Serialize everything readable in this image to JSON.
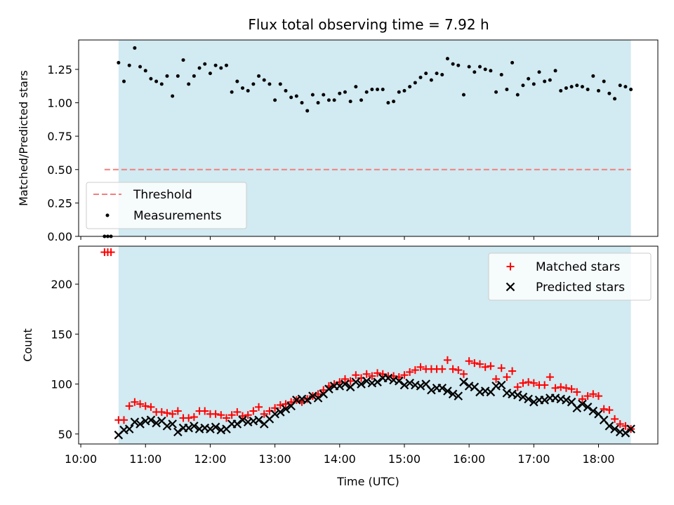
{
  "chart_data": [
    {
      "type": "scatter",
      "title": "Flux total observing time = 7.92 h",
      "xlabel": "",
      "ylabel": "Matched/Predicted stars",
      "ylim": [
        0.0,
        1.47
      ],
      "yticks": [
        "0.00",
        "0.25",
        "0.50",
        "0.75",
        "1.00",
        "1.25"
      ],
      "grid": false,
      "observing_window": [
        "10:35",
        "18:30"
      ],
      "threshold": 0.5,
      "threshold_span": [
        "10:22",
        "18:30"
      ],
      "legend": {
        "placement": "bottom-left",
        "entries": [
          {
            "label": "Threshold",
            "marker": "dashed-line",
            "color": "#f08080"
          },
          {
            "label": "Measurements",
            "marker": "dot",
            "color": "#000000"
          }
        ]
      },
      "series": [
        {
          "name": "Measurements",
          "color": "#000000",
          "x": [
            "10:22",
            "10:25",
            "10:28",
            "10:35",
            "10:40",
            "10:45",
            "10:50",
            "10:55",
            "11:00",
            "11:05",
            "11:10",
            "11:15",
            "11:20",
            "11:25",
            "11:30",
            "11:35",
            "11:40",
            "11:45",
            "11:50",
            "11:55",
            "12:00",
            "12:05",
            "12:10",
            "12:15",
            "12:20",
            "12:25",
            "12:30",
            "12:35",
            "12:40",
            "12:45",
            "12:50",
            "12:55",
            "13:00",
            "13:05",
            "13:10",
            "13:15",
            "13:20",
            "13:25",
            "13:30",
            "13:35",
            "13:40",
            "13:45",
            "13:50",
            "13:55",
            "14:00",
            "14:05",
            "14:10",
            "14:15",
            "14:20",
            "14:25",
            "14:30",
            "14:35",
            "14:40",
            "14:45",
            "14:50",
            "14:55",
            "15:00",
            "15:05",
            "15:10",
            "15:15",
            "15:20",
            "15:25",
            "15:30",
            "15:35",
            "15:40",
            "15:45",
            "15:50",
            "15:55",
            "16:00",
            "16:05",
            "16:10",
            "16:15",
            "16:20",
            "16:25",
            "16:30",
            "16:35",
            "16:40",
            "16:45",
            "16:50",
            "16:55",
            "17:00",
            "17:05",
            "17:10",
            "17:15",
            "17:20",
            "17:25",
            "17:30",
            "17:35",
            "17:40",
            "17:45",
            "17:50",
            "17:55",
            "18:00",
            "18:05",
            "18:10",
            "18:15",
            "18:20",
            "18:25",
            "18:30"
          ],
          "y": [
            0.0,
            0.0,
            0.0,
            1.3,
            1.16,
            1.28,
            1.41,
            1.27,
            1.24,
            1.18,
            1.16,
            1.14,
            1.2,
            1.05,
            1.2,
            1.32,
            1.14,
            1.2,
            1.26,
            1.29,
            1.22,
            1.28,
            1.26,
            1.28,
            1.08,
            1.16,
            1.11,
            1.09,
            1.14,
            1.2,
            1.17,
            1.14,
            1.02,
            1.14,
            1.09,
            1.04,
            1.05,
            1.0,
            0.94,
            1.06,
            1.0,
            1.06,
            1.02,
            1.02,
            1.07,
            1.08,
            1.01,
            1.12,
            1.02,
            1.08,
            1.1,
            1.1,
            1.1,
            1.0,
            1.01,
            1.08,
            1.09,
            1.12,
            1.15,
            1.19,
            1.22,
            1.17,
            1.22,
            1.21,
            1.33,
            1.29,
            1.28,
            1.06,
            1.27,
            1.23,
            1.27,
            1.25,
            1.24,
            1.08,
            1.21,
            1.1,
            1.3,
            1.06,
            1.13,
            1.18,
            1.14,
            1.23,
            1.16,
            1.17,
            1.24,
            1.09,
            1.11,
            1.12,
            1.13,
            1.12,
            1.1,
            1.2,
            1.09,
            1.16,
            1.07,
            1.03,
            1.13,
            1.12,
            1.1
          ]
        }
      ]
    },
    {
      "type": "scatter",
      "title": "",
      "xlabel": "Time (UTC)",
      "ylabel": "Count",
      "ylim": [
        40,
        238
      ],
      "yticks": [
        "50",
        "100",
        "150",
        "200"
      ],
      "xlim": [
        "09:58",
        "18:55"
      ],
      "xticks": [
        "10:00",
        "11:00",
        "12:00",
        "13:00",
        "14:00",
        "15:00",
        "16:00",
        "17:00",
        "18:00"
      ],
      "grid": false,
      "observing_window": [
        "10:35",
        "18:30"
      ],
      "legend": {
        "placement": "top-right",
        "entries": [
          {
            "label": "Matched stars",
            "marker": "plus",
            "color": "#ff0000"
          },
          {
            "label": "Predicted stars",
            "marker": "x",
            "color": "#000000"
          }
        ]
      },
      "series": [
        {
          "name": "Matched stars",
          "color": "#ff0000",
          "x": [
            "10:22",
            "10:25",
            "10:28",
            "10:35",
            "10:40",
            "10:45",
            "10:50",
            "10:55",
            "11:00",
            "11:05",
            "11:10",
            "11:15",
            "11:20",
            "11:25",
            "11:30",
            "11:35",
            "11:40",
            "11:45",
            "11:50",
            "11:55",
            "12:00",
            "12:05",
            "12:10",
            "12:15",
            "12:20",
            "12:25",
            "12:30",
            "12:35",
            "12:40",
            "12:45",
            "12:50",
            "12:55",
            "13:00",
            "13:05",
            "13:10",
            "13:15",
            "13:20",
            "13:25",
            "13:30",
            "13:35",
            "13:40",
            "13:45",
            "13:50",
            "13:55",
            "14:00",
            "14:05",
            "14:10",
            "14:15",
            "14:20",
            "14:25",
            "14:30",
            "14:35",
            "14:40",
            "14:45",
            "14:50",
            "14:55",
            "15:00",
            "15:05",
            "15:10",
            "15:15",
            "15:20",
            "15:25",
            "15:30",
            "15:35",
            "15:40",
            "15:45",
            "15:50",
            "15:55",
            "16:00",
            "16:05",
            "16:10",
            "16:15",
            "16:20",
            "16:25",
            "16:30",
            "16:35",
            "16:40",
            "16:45",
            "16:50",
            "16:55",
            "17:00",
            "17:05",
            "17:10",
            "17:15",
            "17:20",
            "17:25",
            "17:30",
            "17:35",
            "17:40",
            "17:45",
            "17:50",
            "17:55",
            "18:00",
            "18:05",
            "18:10",
            "18:15",
            "18:20",
            "18:25",
            "18:30"
          ],
          "y": [
            232,
            232,
            232,
            64,
            64,
            78,
            82,
            80,
            78,
            77,
            72,
            72,
            71,
            70,
            73,
            66,
            66,
            67,
            73,
            73,
            70,
            70,
            69,
            66,
            69,
            72,
            68,
            69,
            73,
            77,
            70,
            73,
            76,
            79,
            80,
            82,
            84,
            82,
            85,
            88,
            90,
            94,
            98,
            100,
            102,
            105,
            103,
            109,
            106,
            110,
            108,
            111,
            110,
            108,
            108,
            107,
            109,
            112,
            114,
            117,
            115,
            115,
            115,
            115,
            124,
            115,
            114,
            110,
            123,
            121,
            120,
            117,
            118,
            105,
            116,
            107,
            113,
            97,
            101,
            102,
            101,
            99,
            99,
            107,
            96,
            97,
            96,
            95,
            92,
            85,
            88,
            90,
            88,
            75,
            74,
            65,
            60,
            58,
            55
          ]
        },
        {
          "name": "Predicted stars",
          "color": "#000000",
          "x": [
            "10:35",
            "10:40",
            "10:45",
            "10:50",
            "10:55",
            "11:00",
            "11:05",
            "11:10",
            "11:15",
            "11:20",
            "11:25",
            "11:30",
            "11:35",
            "11:40",
            "11:45",
            "11:50",
            "11:55",
            "12:00",
            "12:05",
            "12:10",
            "12:15",
            "12:20",
            "12:25",
            "12:30",
            "12:35",
            "12:40",
            "12:45",
            "12:50",
            "12:55",
            "13:00",
            "13:05",
            "13:10",
            "13:15",
            "13:20",
            "13:25",
            "13:30",
            "13:35",
            "13:40",
            "13:45",
            "13:50",
            "13:55",
            "14:00",
            "14:05",
            "14:10",
            "14:15",
            "14:20",
            "14:25",
            "14:30",
            "14:35",
            "14:40",
            "14:45",
            "14:50",
            "14:55",
            "15:00",
            "15:05",
            "15:10",
            "15:15",
            "15:20",
            "15:25",
            "15:30",
            "15:35",
            "15:40",
            "15:45",
            "15:50",
            "15:55",
            "16:00",
            "16:05",
            "16:10",
            "16:15",
            "16:20",
            "16:25",
            "16:30",
            "16:35",
            "16:40",
            "16:45",
            "16:50",
            "16:55",
            "17:00",
            "17:05",
            "17:10",
            "17:15",
            "17:20",
            "17:25",
            "17:30",
            "17:35",
            "17:40",
            "17:45",
            "17:50",
            "17:55",
            "18:00",
            "18:05",
            "18:10",
            "18:15",
            "18:20",
            "18:25",
            "18:30"
          ],
          "y": [
            49,
            54,
            55,
            62,
            60,
            63,
            64,
            61,
            63,
            58,
            60,
            52,
            56,
            56,
            58,
            55,
            56,
            55,
            57,
            54,
            55,
            60,
            60,
            64,
            62,
            63,
            64,
            60,
            65,
            70,
            72,
            75,
            78,
            84,
            85,
            84,
            88,
            86,
            90,
            95,
            98,
            98,
            100,
            97,
            102,
            100,
            103,
            101,
            102,
            106,
            106,
            104,
            103,
            99,
            101,
            99,
            98,
            100,
            94,
            96,
            96,
            93,
            90,
            88,
            102,
            98,
            97,
            92,
            93,
            92,
            98,
            99,
            91,
            90,
            89,
            87,
            85,
            82,
            84,
            84,
            86,
            86,
            85,
            84,
            82,
            76,
            80,
            77,
            73,
            70,
            64,
            58,
            55,
            52,
            51,
            55
          ]
        }
      ]
    }
  ]
}
